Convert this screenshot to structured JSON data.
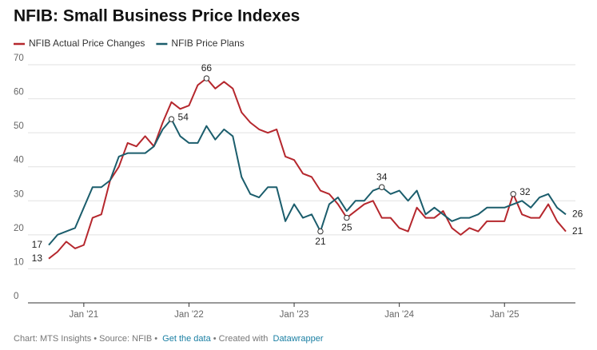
{
  "chart_data": {
    "type": "line",
    "title": "NFIB: Small Business Price Indexes",
    "x": [
      "2020-09",
      "2020-10",
      "2020-11",
      "2020-12",
      "2021-01",
      "2021-02",
      "2021-03",
      "2021-04",
      "2021-05",
      "2021-06",
      "2021-07",
      "2021-08",
      "2021-09",
      "2021-10",
      "2021-11",
      "2021-12",
      "2022-01",
      "2022-02",
      "2022-03",
      "2022-04",
      "2022-05",
      "2022-06",
      "2022-07",
      "2022-08",
      "2022-09",
      "2022-10",
      "2022-11",
      "2022-12",
      "2023-01",
      "2023-02",
      "2023-03",
      "2023-04",
      "2023-05",
      "2023-06",
      "2023-07",
      "2023-08",
      "2023-09",
      "2023-10",
      "2023-11",
      "2023-12",
      "2024-01",
      "2024-02",
      "2024-03",
      "2024-04",
      "2024-05",
      "2024-06",
      "2024-07",
      "2024-08",
      "2024-09",
      "2024-10",
      "2024-11",
      "2024-12",
      "2025-01",
      "2025-02",
      "2025-03",
      "2025-04",
      "2025-05",
      "2025-06",
      "2025-07",
      "2025-08"
    ],
    "series": [
      {
        "name": "NFIB Actual Price Changes",
        "color": "#b5272d",
        "values": [
          13,
          15,
          18,
          16,
          17,
          25,
          26,
          36,
          40,
          47,
          46,
          49,
          46,
          53,
          59,
          57,
          58,
          64,
          66,
          63,
          65,
          63,
          56,
          53,
          51,
          50,
          51,
          43,
          42,
          38,
          37,
          33,
          32,
          29,
          25,
          27,
          29,
          30,
          25,
          25,
          22,
          21,
          28,
          25,
          25,
          27,
          22,
          20,
          22,
          21,
          24,
          24,
          24,
          32,
          26,
          25,
          25,
          29,
          24,
          21
        ],
        "value_labels": [
          "13",
          null,
          null,
          null,
          null,
          null,
          null,
          null,
          null,
          null,
          null,
          null,
          null,
          null,
          null,
          null,
          null,
          null,
          "66",
          null,
          null,
          null,
          null,
          null,
          null,
          null,
          null,
          null,
          null,
          null,
          null,
          null,
          null,
          null,
          "25",
          null,
          null,
          null,
          null,
          null,
          null,
          null,
          null,
          null,
          null,
          null,
          null,
          null,
          null,
          null,
          null,
          null,
          null,
          "32",
          null,
          null,
          null,
          null,
          null,
          "21"
        ]
      },
      {
        "name": "NFIB Price Plans",
        "color": "#1b5d6c",
        "values": [
          17,
          20,
          21,
          22,
          28,
          34,
          34,
          36,
          43,
          44,
          44,
          44,
          46,
          51,
          54,
          49,
          47,
          47,
          52,
          48,
          51,
          49,
          37,
          32,
          31,
          34,
          34,
          24,
          29,
          25,
          26,
          21,
          29,
          31,
          27,
          30,
          30,
          33,
          34,
          32,
          33,
          30,
          33,
          26,
          28,
          26,
          24,
          25,
          25,
          26,
          28,
          28,
          28,
          29,
          30,
          28,
          31,
          32,
          28,
          26
        ],
        "value_labels": [
          "17",
          null,
          null,
          null,
          null,
          null,
          null,
          null,
          null,
          null,
          null,
          null,
          null,
          null,
          "54",
          null,
          null,
          null,
          null,
          null,
          null,
          null,
          null,
          null,
          null,
          null,
          null,
          null,
          null,
          null,
          null,
          "21",
          null,
          null,
          null,
          null,
          null,
          null,
          "34",
          null,
          null,
          null,
          null,
          null,
          null,
          null,
          null,
          null,
          null,
          null,
          null,
          null,
          null,
          null,
          null,
          null,
          null,
          null,
          null,
          "26"
        ]
      }
    ],
    "ylim": [
      0,
      70
    ],
    "yticks": [
      0,
      10,
      20,
      30,
      40,
      50,
      60,
      70
    ],
    "grid": true,
    "xticks": [
      {
        "value": "2021-01",
        "label": "Jan '21"
      },
      {
        "value": "2022-01",
        "label": "Jan '22"
      },
      {
        "value": "2023-01",
        "label": "Jan '23"
      },
      {
        "value": "2024-01",
        "label": "Jan '24"
      },
      {
        "value": "2025-01",
        "label": "Jan '25"
      }
    ],
    "legend": "top-left",
    "footer": {
      "credit": "Chart: MTS Insights • Source: NFIB •",
      "data_link": "Get the data",
      "created": "• Created with",
      "tool_link": "Datawrapper"
    }
  }
}
